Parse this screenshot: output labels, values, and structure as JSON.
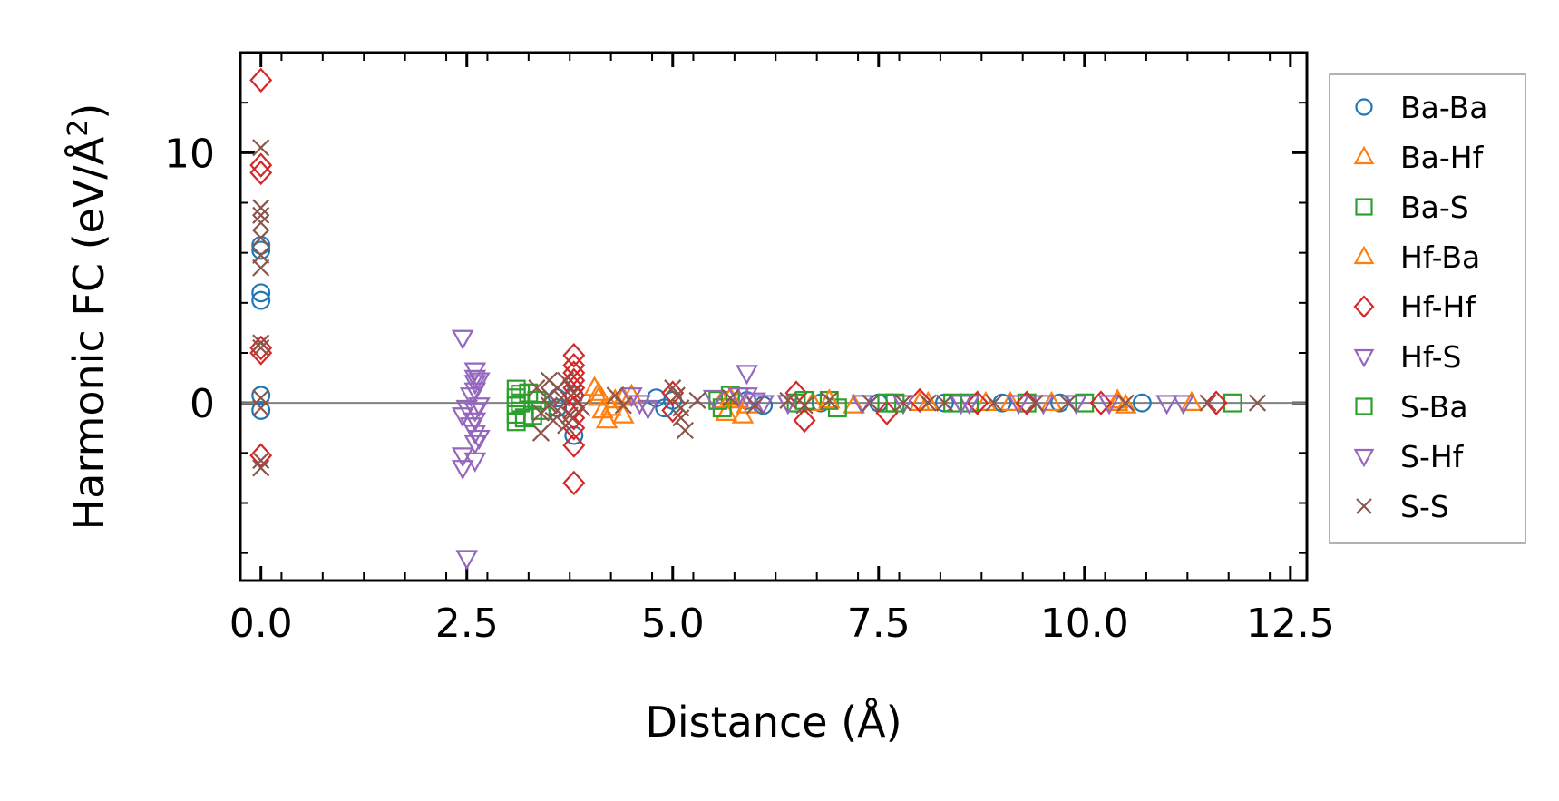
{
  "chart_data": {
    "type": "scatter",
    "title": "",
    "xlabel": "Distance (Å)",
    "ylabel": "Harmonic FC (eV/Å",
    "ylabel_sup": "2",
    "ylabel_end": ")",
    "xlim": [
      -0.25,
      12.7
    ],
    "ylim": [
      -7.1,
      14.0
    ],
    "x_ticks": [
      0.0,
      2.5,
      5.0,
      7.5,
      10.0,
      12.5
    ],
    "x_tick_labels": [
      "0.0",
      "2.5",
      "5.0",
      "7.5",
      "10.0",
      "12.5"
    ],
    "y_ticks": [
      0,
      10
    ],
    "y_tick_labels": [
      "0",
      "10"
    ],
    "reference_line_y": 0,
    "legend_position": "right, outside",
    "series": [
      {
        "name": "Ba-Ba",
        "marker": "circle",
        "color": "#1f77b4",
        "points": [
          [
            0,
            6.3
          ],
          [
            0,
            6.1
          ],
          [
            0,
            4.4
          ],
          [
            0,
            4.1
          ],
          [
            0,
            0.3
          ],
          [
            0,
            -0.3
          ],
          [
            3.6,
            0.2
          ],
          [
            3.6,
            -0.2
          ],
          [
            3.8,
            -1.3
          ],
          [
            3.8,
            0.3
          ],
          [
            4.8,
            0.2
          ],
          [
            4.9,
            -0.2
          ],
          [
            5.0,
            0.1
          ],
          [
            5.9,
            0.1
          ],
          [
            6.1,
            -0.1
          ],
          [
            6.8,
            0.0
          ],
          [
            7.5,
            0.0
          ],
          [
            8.3,
            0.0
          ],
          [
            9.0,
            0.0
          ],
          [
            9.7,
            0.0
          ],
          [
            10.7,
            0.0
          ]
        ]
      },
      {
        "name": "Ba-Hf",
        "marker": "triangle-up",
        "color": "#ff7f0e",
        "points": [
          [
            4.05,
            0.6
          ],
          [
            4.1,
            0.2
          ],
          [
            4.15,
            -0.3
          ],
          [
            4.2,
            -0.7
          ],
          [
            4.3,
            0.1
          ],
          [
            4.4,
            -0.5
          ],
          [
            4.5,
            0.3
          ],
          [
            5.6,
            0.1
          ],
          [
            5.65,
            -0.4
          ],
          [
            5.8,
            0.1
          ],
          [
            5.85,
            -0.5
          ],
          [
            6.7,
            0.0
          ],
          [
            7.2,
            -0.1
          ],
          [
            8.1,
            0.0
          ],
          [
            8.8,
            0.0
          ],
          [
            9.6,
            0.0
          ],
          [
            10.4,
            0.0
          ],
          [
            10.5,
            -0.1
          ],
          [
            11.3,
            0.0
          ]
        ]
      },
      {
        "name": "Ba-S",
        "marker": "square",
        "color": "#2ca02c",
        "points": [
          [
            3.1,
            0.55
          ],
          [
            3.1,
            0.2
          ],
          [
            3.1,
            -0.1
          ],
          [
            3.1,
            -0.45
          ],
          [
            3.1,
            -0.75
          ],
          [
            3.15,
            0.35
          ],
          [
            3.2,
            -0.6
          ],
          [
            3.35,
            0.1
          ],
          [
            3.4,
            -0.3
          ],
          [
            5.55,
            0.1
          ],
          [
            5.6,
            -0.2
          ],
          [
            5.7,
            0.3
          ],
          [
            6.5,
            0.0
          ],
          [
            6.9,
            0.1
          ],
          [
            7.0,
            -0.2
          ],
          [
            7.6,
            0.0
          ],
          [
            8.6,
            0.0
          ],
          [
            9.3,
            0.0
          ],
          [
            10.0,
            0.0
          ],
          [
            11.8,
            0.0
          ]
        ]
      },
      {
        "name": "Hf-Ba",
        "marker": "triangle-up",
        "color": "#ff7f0e",
        "points": [
          [
            4.1,
            0.4
          ],
          [
            4.25,
            -0.2
          ],
          [
            4.4,
            0.2
          ],
          [
            5.7,
            0.2
          ],
          [
            5.9,
            -0.1
          ],
          [
            6.9,
            0.1
          ],
          [
            8.0,
            0.0
          ],
          [
            9.1,
            0.0
          ],
          [
            10.4,
            0.1
          ]
        ]
      },
      {
        "name": "Hf-Hf",
        "marker": "diamond",
        "color": "#d62728",
        "points": [
          [
            0,
            12.9
          ],
          [
            0,
            9.5
          ],
          [
            0,
            9.2
          ],
          [
            0,
            2.2
          ],
          [
            0,
            2.0
          ],
          [
            0,
            -2.1
          ],
          [
            3.8,
            1.9
          ],
          [
            3.8,
            1.5
          ],
          [
            3.8,
            1.2
          ],
          [
            3.8,
            0.9
          ],
          [
            3.8,
            0.6
          ],
          [
            3.8,
            0.3
          ],
          [
            3.8,
            -0.2
          ],
          [
            3.8,
            -0.6
          ],
          [
            3.8,
            -1.0
          ],
          [
            3.8,
            -1.7
          ],
          [
            3.8,
            -3.2
          ],
          [
            5.0,
            0.4
          ],
          [
            5.0,
            -0.3
          ],
          [
            6.5,
            0.4
          ],
          [
            6.6,
            -0.7
          ],
          [
            7.6,
            -0.4
          ],
          [
            8.0,
            0.1
          ],
          [
            8.7,
            0.0
          ],
          [
            9.3,
            0.0
          ],
          [
            10.2,
            0.0
          ],
          [
            11.6,
            0.0
          ]
        ]
      },
      {
        "name": "Hf-S",
        "marker": "triangle-down",
        "color": "#9467bd",
        "points": [
          [
            4.5,
            0.3
          ],
          [
            4.6,
            0.0
          ],
          [
            4.7,
            -0.2
          ],
          [
            5.9,
            1.2
          ],
          [
            5.9,
            0.3
          ],
          [
            6.1,
            0.0
          ],
          [
            6.4,
            0.0
          ],
          [
            7.8,
            0.0
          ],
          [
            8.6,
            0.0
          ],
          [
            9.2,
            0.0
          ],
          [
            9.9,
            0.0
          ],
          [
            11.0,
            0.0
          ],
          [
            11.2,
            0.0
          ]
        ]
      },
      {
        "name": "S-Ba",
        "marker": "square",
        "color": "#2ca02c",
        "points": [
          [
            3.15,
            0.0
          ],
          [
            3.25,
            0.4
          ],
          [
            3.3,
            -0.5
          ],
          [
            6.6,
            0.1
          ],
          [
            7.7,
            0.0
          ],
          [
            8.4,
            0.0
          ]
        ]
      },
      {
        "name": "S-Hf",
        "marker": "triangle-down",
        "color": "#9467bd",
        "points": [
          [
            2.45,
            2.6
          ],
          [
            2.5,
            -6.2
          ],
          [
            2.45,
            -2.6
          ],
          [
            2.45,
            -2.1
          ],
          [
            2.45,
            -0.5
          ],
          [
            2.5,
            -0.2
          ],
          [
            2.55,
            0.3
          ],
          [
            2.55,
            -0.9
          ],
          [
            2.6,
            1.3
          ],
          [
            2.6,
            1.0
          ],
          [
            2.6,
            0.8
          ],
          [
            2.6,
            0.5
          ],
          [
            2.6,
            -0.3
          ],
          [
            2.6,
            -0.7
          ],
          [
            2.6,
            -1.2
          ],
          [
            2.6,
            -1.6
          ],
          [
            2.6,
            -2.3
          ],
          [
            2.65,
            0.9
          ],
          [
            2.65,
            -0.1
          ],
          [
            2.65,
            -1.4
          ],
          [
            5.5,
            0.2
          ],
          [
            5.8,
            0.3
          ],
          [
            6.0,
            0.1
          ],
          [
            7.3,
            0.0
          ],
          [
            8.5,
            0.0
          ],
          [
            9.5,
            0.0
          ],
          [
            10.3,
            0.0
          ]
        ]
      },
      {
        "name": "S-S",
        "marker": "x",
        "color": "#8c564b",
        "points": [
          [
            0,
            10.2
          ],
          [
            0,
            7.8
          ],
          [
            0,
            7.5
          ],
          [
            0,
            7.2
          ],
          [
            0,
            6.6
          ],
          [
            0,
            5.9
          ],
          [
            0,
            5.4
          ],
          [
            0,
            2.4
          ],
          [
            0,
            2.2
          ],
          [
            0,
            0.2
          ],
          [
            0,
            -0.2
          ],
          [
            0,
            -2.3
          ],
          [
            0,
            -2.6
          ],
          [
            3.35,
            0.6
          ],
          [
            3.4,
            -0.4
          ],
          [
            3.4,
            -1.2
          ],
          [
            3.5,
            0.9
          ],
          [
            3.5,
            0.3
          ],
          [
            3.5,
            -0.1
          ],
          [
            3.55,
            -0.7
          ],
          [
            3.6,
            0.6
          ],
          [
            3.6,
            -0.3
          ],
          [
            3.65,
            0.2
          ],
          [
            3.7,
            -0.9
          ],
          [
            3.7,
            0.9
          ],
          [
            3.75,
            -0.5
          ],
          [
            3.8,
            0.4
          ],
          [
            3.9,
            -0.2
          ],
          [
            4.3,
            0.3
          ],
          [
            4.4,
            -0.1
          ],
          [
            5.0,
            0.6
          ],
          [
            5.05,
            0.3
          ],
          [
            5.1,
            -0.2
          ],
          [
            5.1,
            -0.6
          ],
          [
            5.15,
            -1.1
          ],
          [
            5.3,
            0.1
          ],
          [
            5.7,
            0.2
          ],
          [
            6.0,
            -0.1
          ],
          [
            6.4,
            0.1
          ],
          [
            6.6,
            -0.1
          ],
          [
            6.9,
            0.1
          ],
          [
            7.4,
            0.0
          ],
          [
            7.8,
            0.0
          ],
          [
            8.1,
            0.0
          ],
          [
            8.3,
            0.0
          ],
          [
            8.9,
            0.0
          ],
          [
            9.4,
            0.0
          ],
          [
            9.8,
            0.0
          ],
          [
            10.5,
            0.0
          ],
          [
            11.5,
            0.0
          ],
          [
            12.1,
            0.0
          ]
        ]
      }
    ]
  }
}
